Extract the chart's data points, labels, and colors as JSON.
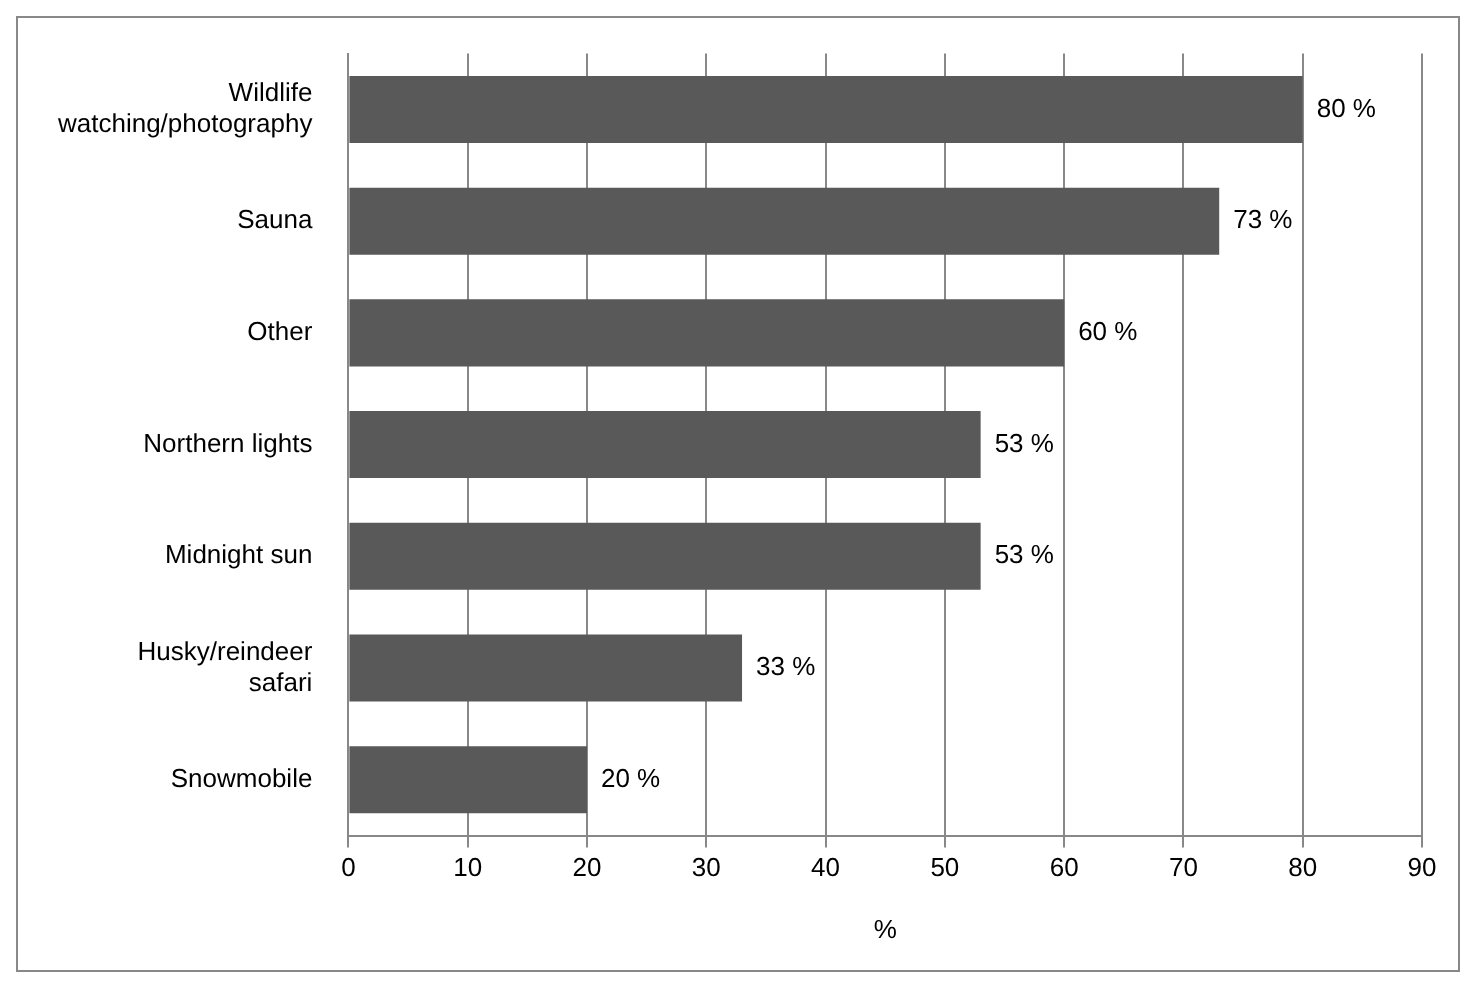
{
  "chart_data": {
    "type": "bar",
    "orientation": "horizontal",
    "xlabel": "%",
    "categories": [
      "Wildlife watching/photography",
      "Sauna",
      "Other",
      "Northern lights",
      "Midnight sun",
      "Husky/reindeer safari",
      "Snowmobile"
    ],
    "values": [
      80,
      73,
      60,
      53,
      53,
      33,
      20
    ],
    "value_labels": [
      "80 %",
      "73 %",
      "60 %",
      "53 %",
      "53 %",
      "33 %",
      "20 %"
    ],
    "color": "#595959",
    "xlim": [
      0,
      90
    ],
    "xticks": [
      0,
      10,
      20,
      30,
      40,
      50,
      60,
      70,
      80,
      90
    ],
    "grid": "x",
    "legend": false
  }
}
